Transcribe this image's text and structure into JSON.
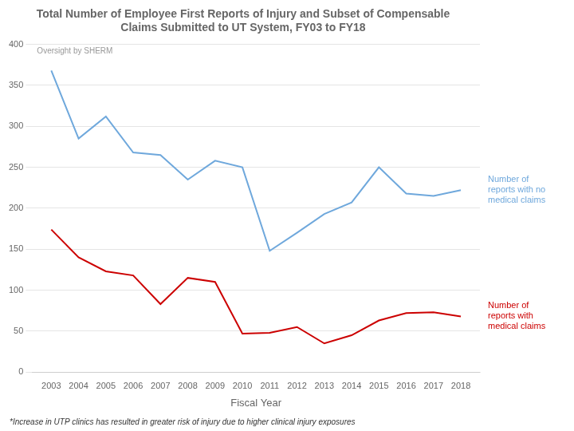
{
  "chart_data": {
    "type": "line",
    "title": "Total Number of Employee First Reports of Injury and Subset of Compensable\nClaims Submitted to UT System, FY03 to FY18",
    "xlabel": "Fiscal Year",
    "annotations": [
      "Oversight by SHERM",
      "*Increase in UTP clinics has resulted in greater risk of injury due to higher clinical injury exposures"
    ],
    "x": [
      2003,
      2004,
      2005,
      2006,
      2007,
      2008,
      2009,
      2010,
      2011,
      2012,
      2013,
      2014,
      2015,
      2016,
      2017,
      2018
    ],
    "series": [
      {
        "name": "Number of\nreports with no\nmedical claims",
        "color": "#6fa8dc",
        "values": [
          368,
          285,
          312,
          268,
          265,
          235,
          258,
          250,
          148,
          170,
          193,
          207,
          250,
          218,
          215,
          222
        ]
      },
      {
        "name": "Number of\nreports with\nmedical claims",
        "color": "#cc0000",
        "values": [
          174,
          140,
          123,
          118,
          83,
          115,
          110,
          47,
          48,
          55,
          35,
          45,
          63,
          72,
          73,
          68
        ]
      }
    ],
    "xlim": [
      2002.3,
      2018.7
    ],
    "xticks": [
      2003,
      2004,
      2005,
      2006,
      2007,
      2008,
      2009,
      2010,
      2011,
      2012,
      2013,
      2014,
      2015,
      2016,
      2017,
      2018
    ],
    "ylim": [
      0,
      400
    ],
    "yticks": [
      0,
      50,
      100,
      150,
      200,
      250,
      300,
      350,
      400
    ],
    "grid": true
  }
}
